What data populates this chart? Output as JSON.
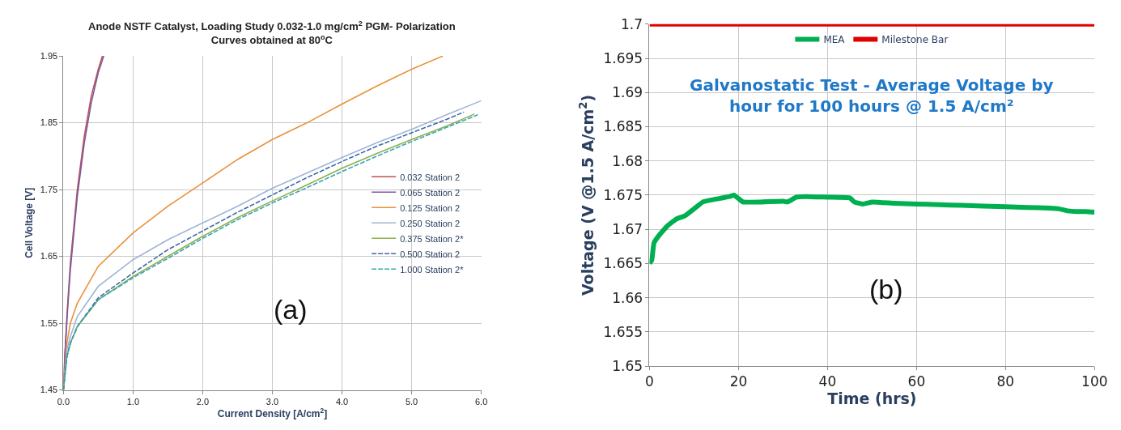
{
  "chart_data": [
    {
      "type": "line",
      "title": "Anode NSTF Catalyst, Loading Study 0.032-1.0 mg/cm$^{2}$ PGM- Polarization\nCurves obtained at 80$^{o}$C",
      "xlabel": "Current Density [A/cm$^{2}$]",
      "ylabel": "Cell Voltage [V]",
      "xlim": [
        0,
        6
      ],
      "ylim": [
        1.45,
        1.95
      ],
      "xticks": [
        {
          "value": 0,
          "label": "0.0"
        },
        {
          "value": 1,
          "label": "1.0"
        },
        {
          "value": 2,
          "label": "2.0"
        },
        {
          "value": 3,
          "label": "3.0"
        },
        {
          "value": 4,
          "label": "4.0"
        },
        {
          "value": 5,
          "label": "5.0"
        },
        {
          "value": 6,
          "label": "6.0"
        }
      ],
      "yticks": [
        1.45,
        1.55,
        1.65,
        1.75,
        1.85,
        1.95
      ],
      "grid": true,
      "legend": "right",
      "marker": "none",
      "annotations": [
        "(a)"
      ],
      "series": [
        {
          "name": "0.032 Station 2",
          "color": "#c0504d",
          "line_style": "solid",
          "x": [
            0,
            0.02,
            0.05,
            0.1,
            0.2,
            0.3,
            0.4,
            0.5,
            0.56
          ],
          "values": [
            1.45,
            1.5,
            1.56,
            1.64,
            1.75,
            1.83,
            1.89,
            1.93,
            1.95
          ]
        },
        {
          "name": "0.065 Station 2",
          "color": "#7a5ba0",
          "line_style": "solid",
          "x": [
            0,
            0.02,
            0.06,
            0.1,
            0.2,
            0.3,
            0.4,
            0.5,
            0.58
          ],
          "values": [
            1.45,
            1.5,
            1.57,
            1.63,
            1.74,
            1.82,
            1.88,
            1.925,
            1.95
          ]
        },
        {
          "name": "0.125 Station 2",
          "color": "#e8923a",
          "line_style": "solid",
          "x": [
            0,
            0.05,
            0.1,
            0.2,
            0.5,
            1.0,
            1.5,
            2.0,
            2.5,
            3.0,
            3.5,
            4.0,
            4.5,
            5.0,
            5.45
          ],
          "values": [
            1.45,
            1.52,
            1.55,
            1.58,
            1.635,
            1.685,
            1.725,
            1.76,
            1.795,
            1.825,
            1.85,
            1.878,
            1.905,
            1.93,
            1.95
          ]
        },
        {
          "name": "0.250 Station 2",
          "color": "#9fb5d6",
          "line_style": "solid",
          "x": [
            0,
            0.05,
            0.1,
            0.2,
            0.5,
            1.0,
            1.5,
            2.0,
            2.5,
            3.0,
            3.5,
            4.0,
            4.5,
            5.0,
            5.5,
            6.0
          ],
          "values": [
            1.45,
            1.51,
            1.53,
            1.56,
            1.605,
            1.645,
            1.675,
            1.7,
            1.725,
            1.752,
            1.775,
            1.798,
            1.82,
            1.84,
            1.862,
            1.883
          ]
        },
        {
          "name": "0.375 Station 2*",
          "color": "#8db24a",
          "line_style": "solid",
          "x": [
            0,
            0.05,
            0.1,
            0.2,
            0.5,
            1.0,
            1.5,
            2.0,
            2.5,
            3.0,
            3.5,
            4.0,
            4.5,
            5.0,
            5.5,
            5.9
          ],
          "values": [
            1.45,
            1.5,
            1.52,
            1.545,
            1.585,
            1.62,
            1.65,
            1.68,
            1.708,
            1.733,
            1.757,
            1.782,
            1.804,
            1.825,
            1.845,
            1.863
          ]
        },
        {
          "name": "0.500 Station 2",
          "color": "#3e6aa8",
          "line_style": "dashed",
          "x": [
            0,
            0.05,
            0.1,
            0.2,
            0.5,
            1.0,
            1.5,
            2.0,
            2.5,
            3.0,
            3.5,
            4.0,
            4.5,
            5.0,
            5.5,
            5.75
          ],
          "values": [
            1.45,
            1.5,
            1.52,
            1.545,
            1.588,
            1.625,
            1.66,
            1.688,
            1.716,
            1.742,
            1.768,
            1.792,
            1.815,
            1.835,
            1.855,
            1.866
          ]
        },
        {
          "name": "1.000 Station 2*",
          "color": "#3ba3b8",
          "line_style": "dashed",
          "x": [
            0,
            0.05,
            0.1,
            0.2,
            0.5,
            1.0,
            1.5,
            2.0,
            2.5,
            3.0,
            3.5,
            4.0,
            4.5,
            5.0,
            5.5,
            5.95
          ],
          "values": [
            1.45,
            1.5,
            1.52,
            1.545,
            1.585,
            1.618,
            1.647,
            1.677,
            1.705,
            1.73,
            1.753,
            1.777,
            1.8,
            1.822,
            1.843,
            1.862
          ]
        }
      ]
    },
    {
      "type": "line",
      "title": "Galvanostatic Test - Average Voltage by\nhour for 100 hours @ 1.5 A/cm²",
      "xlabel": "Time (hrs)",
      "ylabel": "Voltage (V @1.5 A/cm$^{2}$)",
      "xlim": [
        0,
        100
      ],
      "ylim": [
        1.65,
        1.7
      ],
      "xticks": [
        0,
        20,
        40,
        60,
        80,
        100
      ],
      "yticks": [
        1.65,
        1.655,
        1.66,
        1.665,
        1.67,
        1.675,
        1.68,
        1.685,
        1.69,
        1.695,
        1.7
      ],
      "grid": true,
      "legend": "top",
      "marker": "none",
      "annotations": [
        "(b)"
      ],
      "series": [
        {
          "name": "MEA",
          "color": "#00b050",
          "line_style": "solid",
          "x": [
            0,
            0.5,
            1,
            2,
            4,
            6,
            8,
            10,
            12,
            14,
            18,
            19,
            20,
            21,
            25,
            30,
            31,
            33,
            35,
            40,
            45,
            46,
            48,
            50,
            55,
            60,
            65,
            70,
            80,
            85,
            90,
            92,
            94,
            96,
            98,
            100
          ],
          "values": [
            1.665,
            1.6655,
            1.668,
            1.669,
            1.6705,
            1.6715,
            1.672,
            1.673,
            1.674,
            1.6743,
            1.6748,
            1.675,
            1.6745,
            1.674,
            1.674,
            1.6741,
            1.674,
            1.6747,
            1.6748,
            1.6747,
            1.6746,
            1.674,
            1.6737,
            1.674,
            1.6738,
            1.6737,
            1.6736,
            1.6735,
            1.6733,
            1.6732,
            1.6731,
            1.673,
            1.6727,
            1.6726,
            1.6726,
            1.6725
          ]
        },
        {
          "name": "Milestone Bar",
          "color": "#e00000",
          "line_style": "solid",
          "x": [
            0,
            100
          ],
          "values": [
            1.7,
            1.7
          ]
        }
      ]
    }
  ]
}
